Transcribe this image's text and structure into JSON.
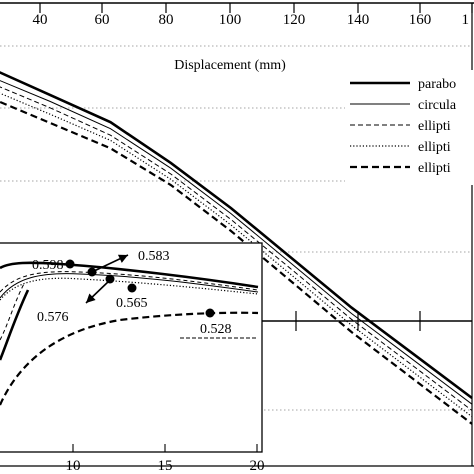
{
  "chart_data": [
    {
      "type": "line",
      "role": "main",
      "xlabel": "Displacement (mm)",
      "xlim": [
        20,
        180
      ],
      "x_ticks": [
        40,
        60,
        80,
        100,
        120,
        140,
        160,
        "1"
      ],
      "series": [
        {
          "name": "parabo",
          "style": "thick-solid",
          "x": [
            20,
            40,
            60,
            80,
            100,
            120,
            140,
            160,
            180
          ],
          "y": [
            0.43,
            0.37,
            0.31,
            0.22,
            0.12,
            0.01,
            -0.1,
            -0.2,
            -0.3
          ]
        },
        {
          "name": "circula",
          "style": "thin-solid",
          "x": [
            20,
            40,
            60,
            80,
            100,
            120,
            140,
            160,
            180
          ],
          "y": [
            0.42,
            0.365,
            0.305,
            0.218,
            0.118,
            0.008,
            -0.102,
            -0.202,
            -0.302
          ]
        },
        {
          "name": "ellipti",
          "style": "thin-dashed",
          "x": [
            20,
            40,
            60,
            80,
            100,
            120,
            140,
            160,
            180
          ],
          "y": [
            0.415,
            0.36,
            0.3,
            0.215,
            0.115,
            0.006,
            -0.104,
            -0.204,
            -0.304
          ]
        },
        {
          "name": "ellipti",
          "style": "dotted",
          "x": [
            20,
            40,
            60,
            80,
            100,
            120,
            140,
            160,
            180
          ],
          "y": [
            0.41,
            0.355,
            0.298,
            0.213,
            0.113,
            0.004,
            -0.106,
            -0.206,
            -0.306
          ]
        },
        {
          "name": "ellipti",
          "style": "thick-dashed",
          "x": [
            20,
            40,
            60,
            80,
            100,
            120,
            140,
            160,
            180
          ],
          "y": [
            0.4,
            0.345,
            0.29,
            0.21,
            0.11,
            0.0,
            -0.11,
            -0.21,
            -0.31
          ]
        }
      ]
    },
    {
      "type": "line",
      "role": "inset",
      "x_ticks": [
        10,
        15,
        20
      ],
      "annotations": [
        {
          "label": "0.598",
          "x": 9.5
        },
        {
          "label": "0.583",
          "x": 11.0
        },
        {
          "label": "0.576",
          "x": 12.0
        },
        {
          "label": "0.565",
          "x": 13.2
        },
        {
          "label": "0.528",
          "x": 17.6
        }
      ]
    }
  ]
}
